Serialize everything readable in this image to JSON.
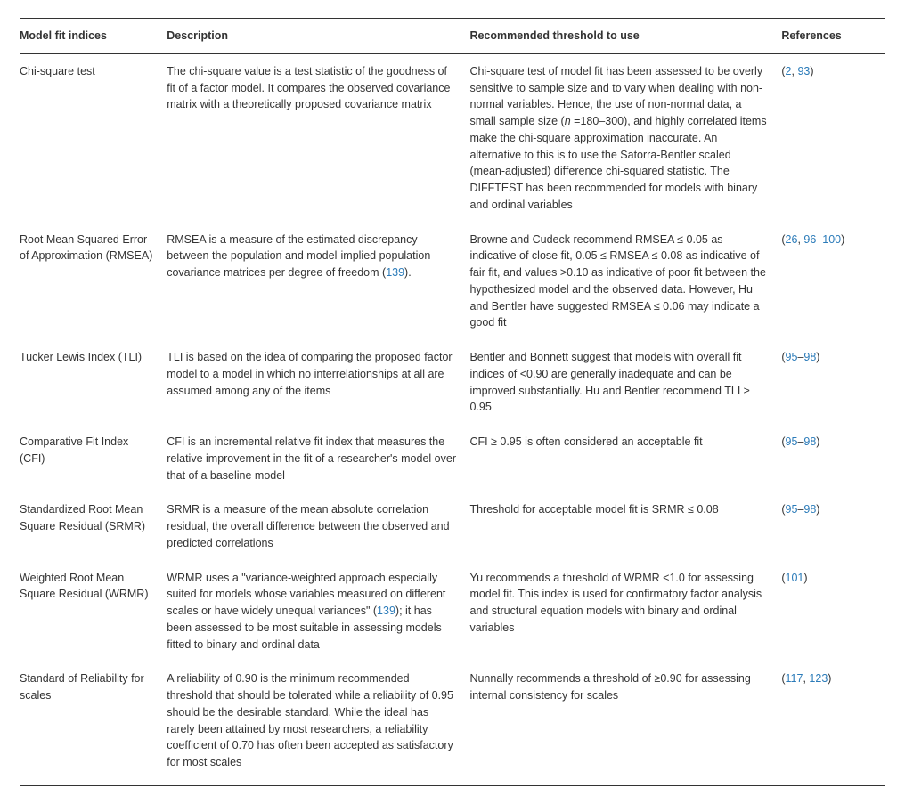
{
  "columns": [
    "Model fit indices",
    "Description",
    "Recommended threshold to use",
    "References"
  ],
  "rows": [
    {
      "index": "Chi-square test",
      "desc": [
        {
          "t": "The chi-square value is a test statistic of the goodness of fit of a factor model. It compares the observed covariance matrix with a theoretically proposed covariance matrix"
        }
      ],
      "thr": [
        {
          "t": "Chi-square test of model fit has been assessed to be overly sensitive to sample size and to vary when dealing with non-normal variables. Hence, the use of non-normal data, a small sample size ("
        },
        {
          "t": "n",
          "italic": true
        },
        {
          "t": " =180–300), and highly correlated items make the chi-square approximation inaccurate. An alternative to this is to use the Satorra-Bentler scaled (mean-adjusted) difference chi-squared statistic. The DIFFTEST has been recommended for models with binary and ordinal variables"
        }
      ],
      "refs": [
        {
          "t": "("
        },
        {
          "t": "2",
          "link": true
        },
        {
          "t": ", "
        },
        {
          "t": "93",
          "link": true
        },
        {
          "t": ")"
        }
      ]
    },
    {
      "index": "Root Mean Squared Error of Approximation (RMSEA)",
      "desc": [
        {
          "t": "RMSEA is a measure of the estimated discrepancy between the population and model-implied population covariance matrices per degree of freedom ("
        },
        {
          "t": "139",
          "link": true
        },
        {
          "t": ")."
        }
      ],
      "thr": [
        {
          "t": "Browne and Cudeck recommend RMSEA ≤ 0.05 as indicative of close fit, 0.05 ≤ RMSEA ≤ 0.08 as indicative of fair fit, and values >0.10 as indicative of poor fit between the hypothesized model and the observed data. However, Hu and Bentler have suggested RMSEA ≤ 0.06 may indicate a good fit"
        }
      ],
      "refs": [
        {
          "t": "("
        },
        {
          "t": "26",
          "link": true
        },
        {
          "t": ", "
        },
        {
          "t": "96",
          "link": true
        },
        {
          "t": "–"
        },
        {
          "t": "100",
          "link": true
        },
        {
          "t": ")"
        }
      ]
    },
    {
      "index": "Tucker Lewis Index (TLI)",
      "desc": [
        {
          "t": "TLI is based on the idea of comparing the proposed factor model to a model in which no interrelationships at all are assumed among any of the items"
        }
      ],
      "thr": [
        {
          "t": "Bentler and Bonnett suggest that models with overall fit indices of <0.90 are generally inadequate and can be improved substantially. Hu and Bentler recommend TLI ≥ 0.95"
        }
      ],
      "refs": [
        {
          "t": "("
        },
        {
          "t": "95",
          "link": true
        },
        {
          "t": "–"
        },
        {
          "t": "98",
          "link": true
        },
        {
          "t": ")"
        }
      ]
    },
    {
      "index": "Comparative Fit Index (CFI)",
      "desc": [
        {
          "t": "CFI is an incremental relative fit index that measures the relative improvement in the fit of a researcher's model over that of a baseline model"
        }
      ],
      "thr": [
        {
          "t": "CFI ≥ 0.95 is often considered an acceptable fit"
        }
      ],
      "refs": [
        {
          "t": "("
        },
        {
          "t": "95",
          "link": true
        },
        {
          "t": "–"
        },
        {
          "t": "98",
          "link": true
        },
        {
          "t": ")"
        }
      ]
    },
    {
      "index": "Standardized Root Mean Square Residual (SRMR)",
      "desc": [
        {
          "t": "SRMR is a measure of the mean absolute correlation residual, the overall difference between the observed and predicted correlations"
        }
      ],
      "thr": [
        {
          "t": "Threshold for acceptable model fit is SRMR ≤ 0.08"
        }
      ],
      "refs": [
        {
          "t": "("
        },
        {
          "t": "95",
          "link": true
        },
        {
          "t": "–"
        },
        {
          "t": "98",
          "link": true
        },
        {
          "t": ")"
        }
      ]
    },
    {
      "index": "Weighted Root Mean Square Residual (WRMR)",
      "desc": [
        {
          "t": "WRMR uses a \"variance-weighted approach especially suited for models whose variables measured on different scales or have widely unequal variances\" ("
        },
        {
          "t": "139",
          "link": true
        },
        {
          "t": "); it has been assessed to be most suitable in assessing models fitted to binary and ordinal data"
        }
      ],
      "thr": [
        {
          "t": "Yu recommends a threshold of WRMR <1.0 for assessing model fit. This index is used for confirmatory factor analysis and structural equation models with binary and ordinal variables"
        }
      ],
      "refs": [
        {
          "t": "("
        },
        {
          "t": "101",
          "link": true
        },
        {
          "t": ")"
        }
      ]
    },
    {
      "index": "Standard of Reliability for scales",
      "desc": [
        {
          "t": "A reliability of 0.90 is the minimum recommended threshold that should be tolerated while a reliability of 0.95 should be the desirable standard. While the ideal has rarely been attained by most researchers, a reliability coefficient of 0.70 has often been accepted as satisfactory for most scales"
        }
      ],
      "thr": [
        {
          "t": "Nunnally recommends a threshold of ≥0.90 for assessing internal consistency for scales"
        }
      ],
      "refs": [
        {
          "t": "("
        },
        {
          "t": "117",
          "link": true
        },
        {
          "t": ", "
        },
        {
          "t": "123",
          "link": true
        },
        {
          "t": ")"
        }
      ]
    }
  ]
}
